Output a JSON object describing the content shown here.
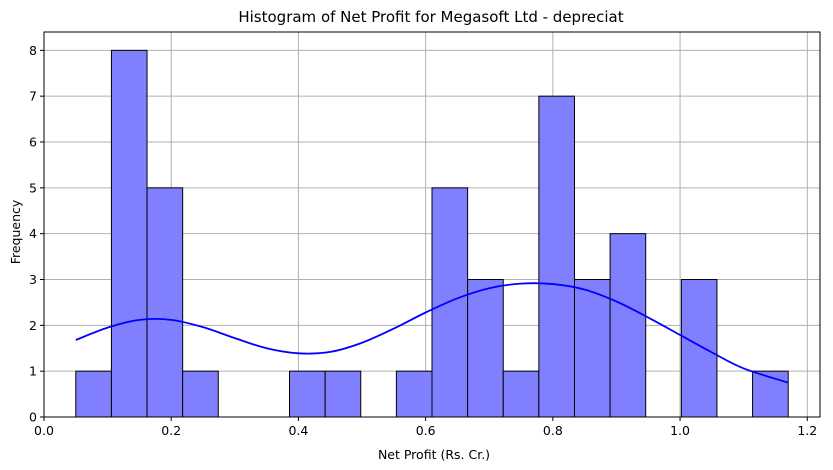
{
  "chart_data": {
    "type": "histogram",
    "title": "Histogram of Net Profit for Megasoft Ltd - depreciat",
    "xlabel": "Net Profit (Rs. Cr.)",
    "ylabel": "Frequency",
    "xlim": [
      0.0,
      1.22
    ],
    "ylim": [
      0,
      8.4
    ],
    "xticks": [
      0.0,
      0.2,
      0.4,
      0.6,
      0.8,
      1.0,
      1.2
    ],
    "xtick_labels": [
      "0.0",
      "0.2",
      "0.4",
      "0.6",
      "0.8",
      "1.0",
      "1.2"
    ],
    "yticks": [
      0,
      1,
      2,
      3,
      4,
      5,
      6,
      7,
      8
    ],
    "ytick_labels": [
      "0",
      "1",
      "2",
      "3",
      "4",
      "5",
      "6",
      "7",
      "8"
    ],
    "grid": true,
    "bar_color": "#8080ff",
    "edge_color": "#000000",
    "kde_color": "#0000ff",
    "bins": {
      "edges": [
        0.05,
        0.106,
        0.162,
        0.218,
        0.274,
        0.33,
        0.386,
        0.442,
        0.498,
        0.554,
        0.61,
        0.666,
        0.722,
        0.778,
        0.834,
        0.89,
        0.946,
        1.002,
        1.058,
        1.114,
        1.17
      ],
      "counts": [
        1,
        8,
        5,
        1,
        0,
        0,
        1,
        1,
        0,
        1,
        5,
        3,
        1,
        7,
        3,
        4,
        0,
        3,
        0,
        1
      ]
    },
    "kde": {
      "x": [
        0.05,
        0.1,
        0.15,
        0.2,
        0.25,
        0.3,
        0.35,
        0.4,
        0.45,
        0.5,
        0.55,
        0.6,
        0.65,
        0.7,
        0.75,
        0.8,
        0.85,
        0.9,
        0.95,
        1.0,
        1.05,
        1.1,
        1.17
      ],
      "y": [
        1.68,
        1.95,
        2.12,
        2.12,
        1.96,
        1.72,
        1.5,
        1.39,
        1.42,
        1.62,
        1.93,
        2.28,
        2.59,
        2.81,
        2.91,
        2.9,
        2.78,
        2.52,
        2.17,
        1.79,
        1.41,
        1.06,
        0.75
      ]
    }
  }
}
